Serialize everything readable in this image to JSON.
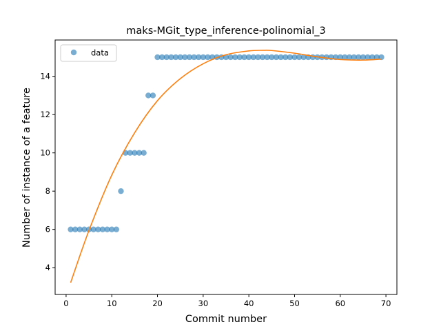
{
  "chart_data": {
    "type": "scatter",
    "title": "maks-MGit_type_inference-polinomial_3",
    "xlabel": "Commit number",
    "ylabel": "Number of instance of a feature",
    "xlim": [
      -2.4,
      72.4
    ],
    "ylim": [
      2.6,
      15.9
    ],
    "xticks": [
      0,
      10,
      20,
      30,
      40,
      50,
      60,
      70
    ],
    "yticks": [
      4,
      6,
      8,
      10,
      12,
      14
    ],
    "grid": false,
    "legend": {
      "position": "upper-left",
      "entries": [
        "data"
      ]
    },
    "series": [
      {
        "name": "data",
        "kind": "scatter",
        "color": "#1f77b4",
        "x": [
          1,
          2,
          3,
          4,
          5,
          6,
          7,
          8,
          9,
          10,
          11,
          12,
          13,
          14,
          15,
          16,
          17,
          18,
          19,
          20,
          21,
          22,
          23,
          24,
          25,
          26,
          27,
          28,
          29,
          30,
          31,
          32,
          33,
          34,
          35,
          36,
          37,
          38,
          39,
          40,
          41,
          42,
          43,
          44,
          45,
          46,
          47,
          48,
          49,
          50,
          51,
          52,
          53,
          54,
          55,
          56,
          57,
          58,
          59,
          60,
          61,
          62,
          63,
          64,
          65,
          66,
          67,
          68,
          69
        ],
        "y": [
          6,
          6,
          6,
          6,
          6,
          6,
          6,
          6,
          6,
          6,
          6,
          8,
          10,
          10,
          10,
          10,
          10,
          13,
          13,
          15,
          15,
          15,
          15,
          15,
          15,
          15,
          15,
          15,
          15,
          15,
          15,
          15,
          15,
          15,
          15,
          15,
          15,
          15,
          15,
          15,
          15,
          15,
          15,
          15,
          15,
          15,
          15,
          15,
          15,
          15,
          15,
          15,
          15,
          15,
          15,
          15,
          15,
          15,
          15,
          15,
          15,
          15,
          15,
          15,
          15,
          15,
          15,
          15,
          15
        ]
      },
      {
        "kind": "line",
        "color": "#ff7f0e",
        "x": [
          1,
          5,
          10,
          15,
          20,
          25,
          30,
          35,
          40,
          43,
          45,
          50,
          55,
          60,
          65,
          69
        ],
        "y": [
          3.22,
          5.94,
          8.84,
          11.05,
          12.73,
          13.88,
          14.66,
          15.13,
          15.33,
          15.36,
          15.35,
          15.21,
          15.02,
          14.88,
          14.85,
          14.9
        ]
      }
    ]
  }
}
